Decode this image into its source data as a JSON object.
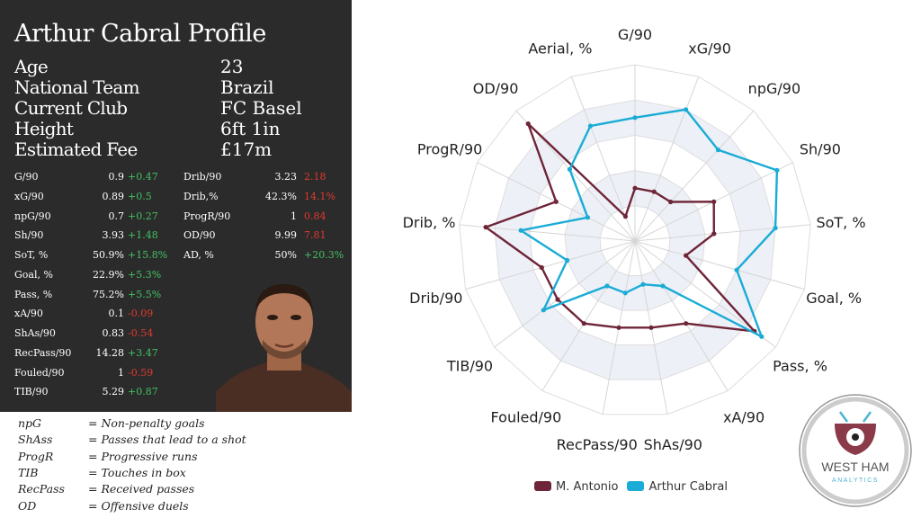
{
  "profile": {
    "title": "Arthur Cabral Profile",
    "info": [
      {
        "label": "Age",
        "value": "23"
      },
      {
        "label": "National Team",
        "value": "Brazil"
      },
      {
        "label": "Current Club",
        "value": "FC Basel"
      },
      {
        "label": "Height",
        "value": "6ft 1in"
      },
      {
        "label": "Estimated Fee",
        "value": "£17m"
      }
    ]
  },
  "stats_left": [
    {
      "label": "G/90",
      "value": "0.9",
      "diff": "+0.47",
      "sign": "pos"
    },
    {
      "label": "xG/90",
      "value": "0.89",
      "diff": "+0.5",
      "sign": "pos"
    },
    {
      "label": "npG/90",
      "value": "0.7",
      "diff": "+0.27",
      "sign": "pos"
    },
    {
      "label": "Sh/90",
      "value": "3.93",
      "diff": "+1.48",
      "sign": "pos"
    },
    {
      "label": "SoT, %",
      "value": "50.9%",
      "diff": "+15.8%",
      "sign": "pos"
    },
    {
      "label": "Goal, %",
      "value": "22.9%",
      "diff": "+5.3%",
      "sign": "pos"
    },
    {
      "label": "Pass, %",
      "value": "75.2%",
      "diff": "+5.5%",
      "sign": "pos"
    },
    {
      "label": "xA/90",
      "value": "0.1",
      "diff": "-0.09",
      "sign": "neg"
    },
    {
      "label": "ShAs/90",
      "value": "0.83",
      "diff": "-0.54",
      "sign": "neg"
    },
    {
      "label": "RecPass/90",
      "value": "14.28",
      "diff": "+3.47",
      "sign": "pos"
    },
    {
      "label": "Fouled/90",
      "value": "1",
      "diff": "-0.59",
      "sign": "neg"
    },
    {
      "label": "TIB/90",
      "value": "5.29",
      "diff": "+0.87",
      "sign": "pos"
    }
  ],
  "stats_right": [
    {
      "label": "Drib/90",
      "value": "3.23",
      "diff": "2.18",
      "sign": "neg"
    },
    {
      "label": "Drib,%",
      "value": "42.3%",
      "diff": "14.1%",
      "sign": "neg"
    },
    {
      "label": "ProgR/90",
      "value": "1",
      "diff": "0.84",
      "sign": "neg"
    },
    {
      "label": "OD/90",
      "value": "9.99",
      "diff": "7.81",
      "sign": "neg"
    },
    {
      "label": "AD, %",
      "value": "50%",
      "diff": "+20.3%",
      "sign": "pos"
    }
  ],
  "glossary": [
    {
      "abbr": "npG",
      "definition": "= Non-penalty goals"
    },
    {
      "abbr": "ShAss",
      "definition": "= Passes that lead to a shot"
    },
    {
      "abbr": "ProgR",
      "definition": "= Progressive runs"
    },
    {
      "abbr": "TIB",
      "definition": "= Touches in box"
    },
    {
      "abbr": "RecPass",
      "definition": "= Received passes"
    },
    {
      "abbr": "OD",
      "definition": "= Offensive duels"
    }
  ],
  "logo": {
    "line1": "WEST HAM",
    "line2": "ANALYTICS"
  },
  "chart_data": {
    "type": "radar",
    "axes": [
      "G/90",
      "xG/90",
      "npG/90",
      "Sh/90",
      "SoT, %",
      "Goal, %",
      "Pass, %",
      "xA/90",
      "ShAs/90",
      "RecPass/90",
      "Fouled/90",
      "TIB/90",
      "Drib/90",
      "Drib, %",
      "ProgR/90",
      "OD/90",
      "Aerial, %"
    ],
    "rmax": 100,
    "grid_levels": 5,
    "series": [
      {
        "name": "M. Antonio",
        "color": "#6e2538",
        "values": [
          30,
          30,
          30,
          50,
          45,
          30,
          85,
          55,
          50,
          50,
          55,
          55,
          55,
          85,
          50,
          90,
          15
        ]
      },
      {
        "name": "Arthur Cabral",
        "color": "#1aacd6",
        "values": [
          70,
          80,
          70,
          90,
          80,
          60,
          90,
          30,
          25,
          30,
          30,
          65,
          40,
          65,
          30,
          55,
          70
        ]
      }
    ]
  }
}
